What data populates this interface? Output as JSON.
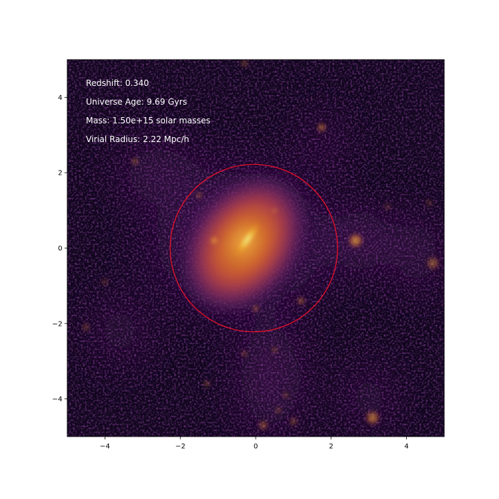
{
  "chart_data": {
    "type": "heatmap",
    "colormap": "inferno",
    "xlim": [
      -5,
      5
    ],
    "ylim": [
      -5,
      5
    ],
    "xticks": [
      -4,
      -2,
      0,
      2,
      4
    ],
    "yticks": [
      -4,
      -2,
      0,
      2,
      4
    ],
    "xtick_labels": [
      "−4",
      "−2",
      "0",
      "2",
      "4"
    ],
    "ytick_labels": [
      "−4",
      "−2",
      "0",
      "2",
      "4"
    ],
    "grid": false,
    "annotations": [
      {
        "key": "redshift",
        "text": "Redshift: 0.340"
      },
      {
        "key": "age",
        "text": "Universe Age: 9.69 Gyrs"
      },
      {
        "key": "mass",
        "text": "Mass: 1.50e+15 solar masses"
      },
      {
        "key": "radius",
        "text": "Virial Radius: 2.22 Mpc/h"
      }
    ],
    "virial_circle": {
      "center": [
        -0.05,
        0.0
      ],
      "radius": 2.22,
      "color": "#e8102a"
    },
    "main_halo": {
      "center": [
        -0.3,
        0.3
      ],
      "elongation_angle_deg": 55
    },
    "subhalos": [
      {
        "x": 2.65,
        "y": 0.2,
        "brightness": 0.7,
        "size": 0.22
      },
      {
        "x": -1.1,
        "y": 0.2,
        "brightness": 0.65,
        "size": 0.15
      },
      {
        "x": 1.75,
        "y": 3.2,
        "brightness": 0.55,
        "size": 0.14
      },
      {
        "x": 3.1,
        "y": -4.5,
        "brightness": 0.6,
        "size": 0.22
      },
      {
        "x": 4.7,
        "y": -0.4,
        "brightness": 0.45,
        "size": 0.2
      },
      {
        "x": -4.5,
        "y": -2.1,
        "brightness": 0.35,
        "size": 0.12
      },
      {
        "x": -3.2,
        "y": 2.3,
        "brightness": 0.4,
        "size": 0.12
      },
      {
        "x": 1.2,
        "y": -1.4,
        "brightness": 0.5,
        "size": 0.12
      },
      {
        "x": 0.0,
        "y": -1.6,
        "brightness": 0.5,
        "size": 0.1
      },
      {
        "x": -1.5,
        "y": 1.4,
        "brightness": 0.45,
        "size": 0.1
      },
      {
        "x": -1.3,
        "y": -3.6,
        "brightness": 0.4,
        "size": 0.1
      },
      {
        "x": 0.5,
        "y": -2.7,
        "brightness": 0.4,
        "size": 0.1
      },
      {
        "x": 0.2,
        "y": -4.7,
        "brightness": 0.45,
        "size": 0.15
      },
      {
        "x": 1.0,
        "y": -4.6,
        "brightness": 0.4,
        "size": 0.12
      },
      {
        "x": 0.6,
        "y": -4.3,
        "brightness": 0.4,
        "size": 0.1
      },
      {
        "x": -0.3,
        "y": -2.8,
        "brightness": 0.4,
        "size": 0.1
      },
      {
        "x": 0.5,
        "y": 1.0,
        "brightness": 0.4,
        "size": 0.1
      },
      {
        "x": -0.3,
        "y": 4.9,
        "brightness": 0.35,
        "size": 0.12
      },
      {
        "x": 0.8,
        "y": -3.9,
        "brightness": 0.35,
        "size": 0.1
      },
      {
        "x": -4.0,
        "y": -0.9,
        "brightness": 0.3,
        "size": 0.1
      },
      {
        "x": 4.6,
        "y": 1.2,
        "brightness": 0.3,
        "size": 0.1
      },
      {
        "x": 3.5,
        "y": 1.1,
        "brightness": 0.3,
        "size": 0.1
      }
    ]
  }
}
